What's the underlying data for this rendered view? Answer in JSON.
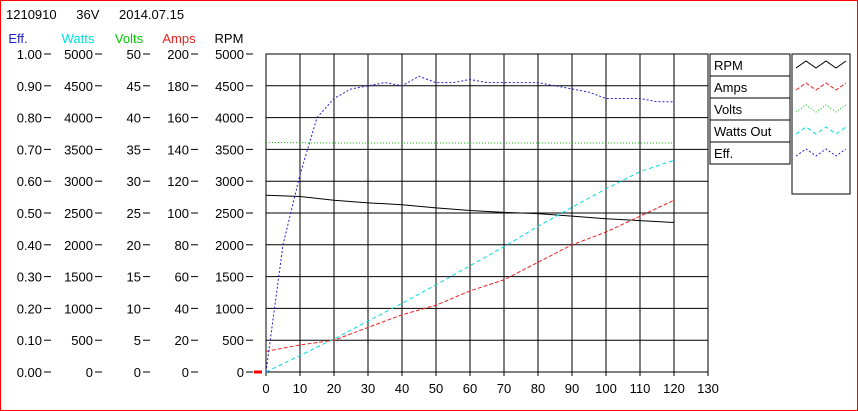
{
  "header": {
    "id": "1210910",
    "voltage": "36V",
    "date": "2014.07.15"
  },
  "colors": {
    "eff": "#2222cc",
    "watts": "#00dddd",
    "volts": "#00cc00",
    "amps": "#ee2222",
    "rpm": "#000000",
    "frame": "#ff0000"
  },
  "chart_data": {
    "type": "line",
    "x_ticks": [
      "0",
      "10",
      "20",
      "30",
      "40",
      "50",
      "60",
      "70",
      "80",
      "90",
      "100",
      "110",
      "120",
      "130"
    ],
    "xlim": [
      0,
      130
    ],
    "axes": [
      {
        "label": "Eff.",
        "color_key": "eff",
        "ticks": [
          "0.00",
          "0.10",
          "0.20",
          "0.30",
          "0.40",
          "0.50",
          "0.60",
          "0.70",
          "0.80",
          "0.90",
          "1.00"
        ],
        "ylim": [
          0,
          1
        ]
      },
      {
        "label": "Watts",
        "color_key": "watts",
        "ticks": [
          "0",
          "500",
          "1000",
          "1500",
          "2000",
          "2500",
          "3000",
          "3500",
          "4000",
          "4500",
          "5000"
        ],
        "ylim": [
          0,
          5000
        ]
      },
      {
        "label": "Volts",
        "color_key": "volts",
        "ticks": [
          "0",
          "5",
          "10",
          "15",
          "20",
          "25",
          "30",
          "35",
          "40",
          "45",
          "50"
        ],
        "ylim": [
          0,
          50
        ]
      },
      {
        "label": "Amps",
        "color_key": "amps",
        "ticks": [
          "0",
          "20",
          "40",
          "60",
          "80",
          "100",
          "120",
          "140",
          "160",
          "180",
          "200"
        ],
        "ylim": [
          0,
          200
        ]
      },
      {
        "label": "RPM",
        "color_key": "rpm",
        "ticks": [
          "0",
          "500",
          "1000",
          "1500",
          "2000",
          "2500",
          "3000",
          "3500",
          "4000",
          "4500",
          "5000"
        ],
        "ylim": [
          0,
          5000
        ]
      }
    ],
    "legend": {
      "placement": "right",
      "items": [
        "RPM",
        "Amps",
        "Volts",
        "Watts Out",
        "Eff."
      ]
    },
    "series": [
      {
        "name": "RPM",
        "axis": 4,
        "color_key": "rpm",
        "dash": "none",
        "x": [
          0,
          10,
          20,
          30,
          40,
          50,
          60,
          70,
          80,
          90,
          100,
          110,
          120
        ],
        "y": [
          2780,
          2760,
          2700,
          2660,
          2630,
          2580,
          2540,
          2510,
          2490,
          2450,
          2410,
          2380,
          2350
        ]
      },
      {
        "name": "Amps",
        "axis": 3,
        "color_key": "amps",
        "dash": "4,2",
        "x": [
          0,
          10,
          20,
          30,
          40,
          50,
          60,
          70,
          80,
          90,
          100,
          110,
          120
        ],
        "y": [
          13,
          17,
          20,
          28,
          36,
          42,
          51,
          58,
          69,
          80,
          88,
          98,
          108
        ]
      },
      {
        "name": "Volts",
        "axis": 2,
        "color_key": "volts",
        "dash": "1,2",
        "x": [
          0,
          20,
          40,
          60,
          80,
          100,
          120
        ],
        "y": [
          36.1,
          36.0,
          36.0,
          36.0,
          36.0,
          36.0,
          36.0
        ]
      },
      {
        "name": "Watts Out",
        "axis": 1,
        "color_key": "watts",
        "dash": "4,3",
        "x": [
          0,
          10,
          20,
          30,
          40,
          50,
          60,
          70,
          80,
          90,
          100,
          110,
          120
        ],
        "y": [
          0,
          260,
          520,
          800,
          1080,
          1370,
          1670,
          1970,
          2290,
          2590,
          2880,
          3150,
          3330
        ]
      },
      {
        "name": "Eff.",
        "axis": 0,
        "color_key": "eff",
        "dash": "2,2",
        "x": [
          0,
          5,
          10,
          15,
          20,
          25,
          30,
          35,
          40,
          45,
          50,
          55,
          60,
          65,
          70,
          75,
          80,
          85,
          90,
          95,
          100,
          105,
          110,
          115,
          120
        ],
        "y": [
          0.0,
          0.4,
          0.62,
          0.8,
          0.86,
          0.89,
          0.9,
          0.91,
          0.9,
          0.93,
          0.91,
          0.91,
          0.92,
          0.91,
          0.91,
          0.91,
          0.91,
          0.9,
          0.89,
          0.88,
          0.86,
          0.86,
          0.86,
          0.85,
          0.85
        ]
      }
    ]
  }
}
